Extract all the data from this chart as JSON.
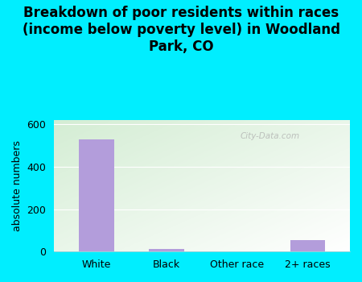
{
  "categories": [
    "White",
    "Black",
    "Other race",
    "2+ races"
  ],
  "values": [
    530,
    14,
    0,
    55
  ],
  "bar_color": "#b39ddb",
  "title": "Breakdown of poor residents within races\n(income below poverty level) in Woodland\nPark, CO",
  "ylabel": "absolute numbers",
  "ylim": [
    0,
    620
  ],
  "yticks": [
    0,
    200,
    400,
    600
  ],
  "background_outer": "#00eeff",
  "title_fontsize": 12,
  "axis_fontsize": 9,
  "tick_fontsize": 9,
  "bar_width": 0.5,
  "watermark": "City-Data.com"
}
